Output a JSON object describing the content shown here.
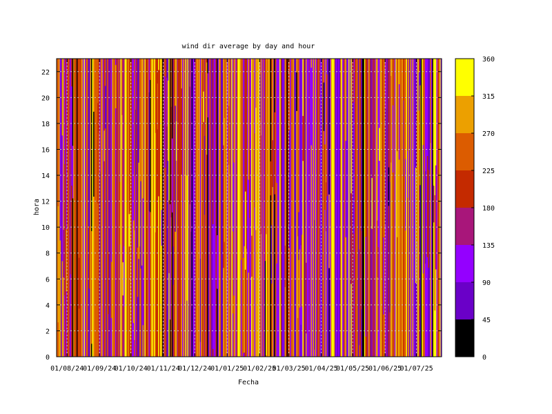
{
  "chart_data": {
    "type": "heatmap",
    "title": "wind dir average by day and hour",
    "xlabel": "Fecha",
    "ylabel": "hora",
    "x_ticks": [
      "01/08/24",
      "01/09/24",
      "01/10/24",
      "01/11/24",
      "01/12/24",
      "01/01/25",
      "01/02/25",
      "01/03/25",
      "01/04/25",
      "01/05/25",
      "01/06/25",
      "01/07/25"
    ],
    "x_range": [
      "2024-07-22",
      "2025-07-25"
    ],
    "y_ticks": [
      0,
      2,
      4,
      6,
      8,
      10,
      12,
      14,
      16,
      18,
      20,
      22
    ],
    "ylim": [
      0,
      23
    ],
    "colorbar": {
      "ticks": [
        0,
        45,
        90,
        135,
        180,
        225,
        270,
        315,
        360
      ],
      "range": [
        0,
        360
      ],
      "bands": [
        {
          "from": 0,
          "to": 45,
          "color": "#000000"
        },
        {
          "from": 45,
          "to": 90,
          "color": "#6a00c8"
        },
        {
          "from": 90,
          "to": 135,
          "color": "#9400ff"
        },
        {
          "from": 135,
          "to": 180,
          "color": "#a8167a"
        },
        {
          "from": 180,
          "to": 225,
          "color": "#c42a00"
        },
        {
          "from": 225,
          "to": 270,
          "color": "#dc5c00"
        },
        {
          "from": 270,
          "to": 315,
          "color": "#eca000"
        },
        {
          "from": 315,
          "to": 360,
          "color": "#ffff00"
        }
      ]
    },
    "grid": true,
    "legend": "colorbar-right"
  }
}
